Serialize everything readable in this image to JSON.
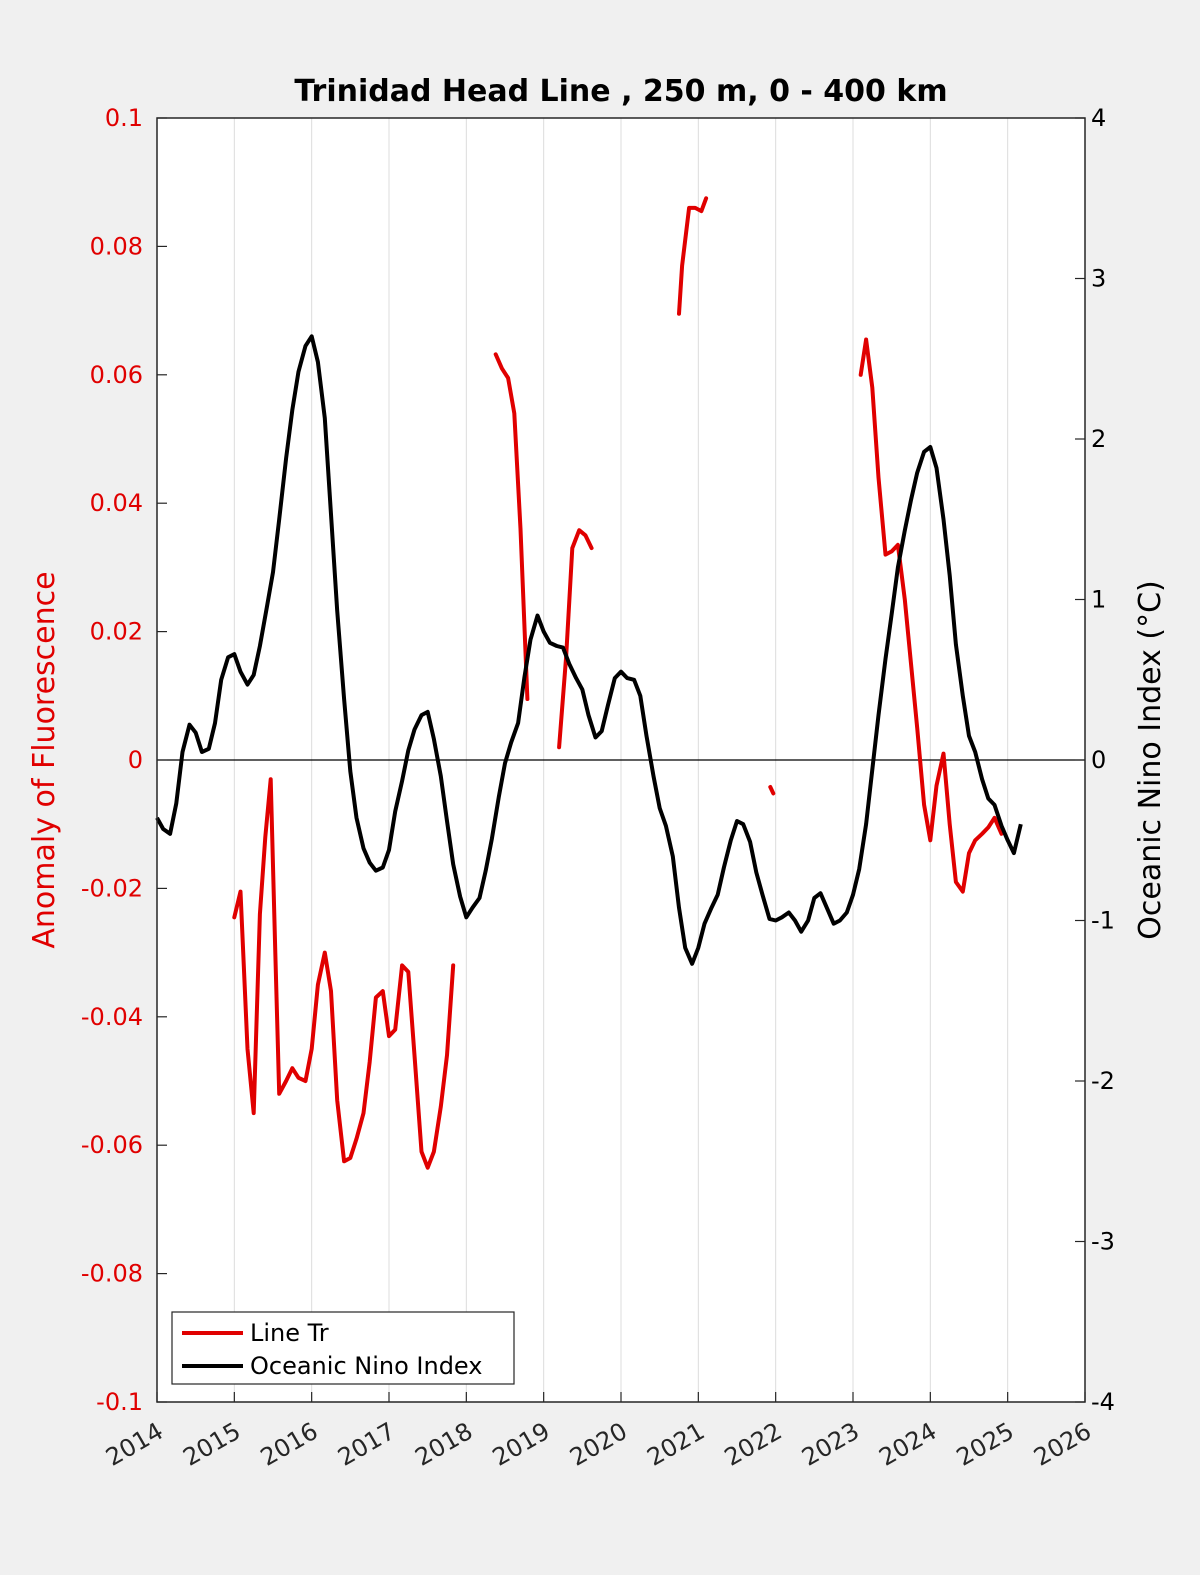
{
  "chart_data": {
    "type": "line",
    "title": "Trinidad Head Line , 250 m, 0 - 400 km",
    "y_left_label": "Anomaly of Fluorescence",
    "y_right_label": "Oceanic Nino Index (°C)",
    "colors": {
      "left_axis": "#e00000",
      "fluorescence": "#e00000",
      "oni": "#000000",
      "grid": "#dcdcdc",
      "zero_line": "#000000"
    },
    "xlim": [
      2014,
      2026
    ],
    "x_ticks": [
      2014,
      2015,
      2016,
      2017,
      2018,
      2019,
      2020,
      2021,
      2022,
      2023,
      2024,
      2025,
      2026
    ],
    "x_tick_labels": [
      "2014",
      "2015",
      "2016",
      "2017",
      "2018",
      "2019",
      "2020",
      "2021",
      "2022",
      "2023",
      "2024",
      "2025",
      "2026"
    ],
    "ylim_left": [
      -0.1,
      0.1
    ],
    "y_left_ticks": [
      0.1,
      0.08,
      0.06,
      0.04,
      0.02,
      0,
      -0.02,
      -0.04,
      -0.06,
      -0.08,
      -0.1
    ],
    "y_left_tick_labels": [
      "0.1",
      "0.08",
      "0.06",
      "0.04",
      "0.02",
      "0",
      "-0.02",
      "-0.04",
      "-0.06",
      "-0.08",
      "-0.1"
    ],
    "ylim_right": [
      -4,
      4
    ],
    "y_right_ticks": [
      4,
      3,
      2,
      1,
      0,
      -1,
      -2,
      -3,
      -4
    ],
    "y_right_tick_labels": [
      "4",
      "3",
      "2",
      "1",
      "0",
      "-1",
      "-2",
      "-3",
      "-4"
    ],
    "grid": "vertical",
    "legend": {
      "placement": "bottom-left",
      "entries": [
        "Line Tr",
        "Oceanic Nino Index"
      ]
    },
    "series": [
      {
        "name": "Line Tr",
        "axis": "left",
        "segments": [
          [
            [
              2015.0,
              -0.0245
            ],
            [
              2015.08,
              -0.0205
            ],
            [
              2015.17,
              -0.045
            ],
            [
              2015.25,
              -0.055
            ],
            [
              2015.33,
              -0.024
            ],
            [
              2015.4,
              -0.012
            ],
            [
              2015.47,
              -0.003
            ],
            [
              2015.53,
              -0.03
            ],
            [
              2015.58,
              -0.052
            ],
            [
              2015.67,
              -0.05
            ],
            [
              2015.75,
              -0.048
            ],
            [
              2015.83,
              -0.0495
            ],
            [
              2015.92,
              -0.05
            ],
            [
              2016.0,
              -0.045
            ],
            [
              2016.08,
              -0.035
            ],
            [
              2016.17,
              -0.03
            ],
            [
              2016.25,
              -0.036
            ],
            [
              2016.33,
              -0.053
            ],
            [
              2016.42,
              -0.0625
            ],
            [
              2016.5,
              -0.062
            ],
            [
              2016.58,
              -0.059
            ],
            [
              2016.67,
              -0.055
            ],
            [
              2016.75,
              -0.047
            ],
            [
              2016.83,
              -0.037
            ],
            [
              2016.92,
              -0.036
            ],
            [
              2017.0,
              -0.043
            ],
            [
              2017.08,
              -0.042
            ],
            [
              2017.17,
              -0.032
            ],
            [
              2017.25,
              -0.033
            ],
            [
              2017.33,
              -0.046
            ],
            [
              2017.42,
              -0.061
            ],
            [
              2017.5,
              -0.0635
            ],
            [
              2017.58,
              -0.061
            ],
            [
              2017.67,
              -0.054
            ],
            [
              2017.75,
              -0.046
            ],
            [
              2017.83,
              -0.032
            ]
          ],
          [
            [
              2018.38,
              0.0632
            ],
            [
              2018.46,
              0.061
            ],
            [
              2018.54,
              0.0595
            ],
            [
              2018.62,
              0.054
            ],
            [
              2018.7,
              0.036
            ],
            [
              2018.79,
              0.0095
            ]
          ],
          [
            [
              2019.2,
              0.002
            ],
            [
              2019.29,
              0.016
            ],
            [
              2019.37,
              0.033
            ],
            [
              2019.46,
              0.0358
            ],
            [
              2019.54,
              0.035
            ],
            [
              2019.62,
              0.033
            ]
          ],
          [
            [
              2020.75,
              0.0695
            ],
            [
              2020.79,
              0.077
            ],
            [
              2020.88,
              0.086
            ],
            [
              2020.96,
              0.086
            ],
            [
              2021.04,
              0.0855
            ],
            [
              2021.1,
              0.0875
            ]
          ],
          [
            [
              2021.93,
              -0.0042
            ],
            [
              2021.97,
              -0.0052
            ]
          ],
          [
            [
              2023.1,
              0.06
            ],
            [
              2023.17,
              0.0655
            ],
            [
              2023.25,
              0.058
            ],
            [
              2023.33,
              0.044
            ],
            [
              2023.42,
              0.032
            ],
            [
              2023.5,
              0.0325
            ],
            [
              2023.58,
              0.0335
            ],
            [
              2023.67,
              0.025
            ],
            [
              2023.75,
              0.015
            ],
            [
              2023.83,
              0.005
            ],
            [
              2023.92,
              -0.007
            ],
            [
              2024.0,
              -0.0125
            ],
            [
              2024.08,
              -0.004
            ],
            [
              2024.17,
              0.001
            ],
            [
              2024.25,
              -0.01
            ],
            [
              2024.33,
              -0.019
            ],
            [
              2024.42,
              -0.0205
            ],
            [
              2024.5,
              -0.0145
            ],
            [
              2024.58,
              -0.0125
            ],
            [
              2024.67,
              -0.0115
            ],
            [
              2024.75,
              -0.0105
            ],
            [
              2024.83,
              -0.009
            ],
            [
              2024.92,
              -0.0115
            ]
          ]
        ]
      },
      {
        "name": "Oceanic Nino Index",
        "axis": "right",
        "x": [
          2014.0,
          2014.08,
          2014.17,
          2014.25,
          2014.33,
          2014.42,
          2014.5,
          2014.58,
          2014.67,
          2014.75,
          2014.83,
          2014.92,
          2015.0,
          2015.08,
          2015.17,
          2015.25,
          2015.33,
          2015.42,
          2015.5,
          2015.58,
          2015.67,
          2015.75,
          2015.83,
          2015.92,
          2016.0,
          2016.08,
          2016.17,
          2016.25,
          2016.33,
          2016.42,
          2016.5,
          2016.58,
          2016.67,
          2016.75,
          2016.83,
          2016.92,
          2017.0,
          2017.08,
          2017.17,
          2017.25,
          2017.33,
          2017.42,
          2017.5,
          2017.58,
          2017.67,
          2017.75,
          2017.83,
          2017.92,
          2018.0,
          2018.08,
          2018.17,
          2018.25,
          2018.33,
          2018.42,
          2018.5,
          2018.58,
          2018.67,
          2018.75,
          2018.83,
          2018.92,
          2019.0,
          2019.08,
          2019.17,
          2019.25,
          2019.33,
          2019.42,
          2019.5,
          2019.58,
          2019.67,
          2019.75,
          2019.83,
          2019.92,
          2020.0,
          2020.08,
          2020.17,
          2020.25,
          2020.33,
          2020.42,
          2020.5,
          2020.58,
          2020.67,
          2020.75,
          2020.83,
          2020.92,
          2021.0,
          2021.08,
          2021.17,
          2021.25,
          2021.33,
          2021.42,
          2021.5,
          2021.58,
          2021.67,
          2021.75,
          2021.83,
          2021.92,
          2022.0,
          2022.08,
          2022.17,
          2022.25,
          2022.33,
          2022.42,
          2022.5,
          2022.58,
          2022.67,
          2022.75,
          2022.83,
          2022.92,
          2023.0,
          2023.08,
          2023.17,
          2023.25,
          2023.33,
          2023.42,
          2023.5,
          2023.58,
          2023.67,
          2023.75,
          2023.83,
          2023.92,
          2024.0,
          2024.08,
          2024.17,
          2024.25,
          2024.33,
          2024.42,
          2024.5,
          2024.58,
          2024.67,
          2024.75,
          2024.83,
          2024.92,
          2025.0,
          2025.08,
          2025.17
        ],
        "values": [
          -0.36,
          -0.43,
          -0.46,
          -0.27,
          0.05,
          0.22,
          0.17,
          0.05,
          0.07,
          0.23,
          0.5,
          0.64,
          0.66,
          0.55,
          0.47,
          0.53,
          0.71,
          0.95,
          1.17,
          1.5,
          1.88,
          2.18,
          2.42,
          2.58,
          2.64,
          2.48,
          2.13,
          1.53,
          0.93,
          0.38,
          -0.07,
          -0.36,
          -0.55,
          -0.64,
          -0.69,
          -0.67,
          -0.56,
          -0.32,
          -0.13,
          0.06,
          0.19,
          0.28,
          0.3,
          0.13,
          -0.1,
          -0.38,
          -0.65,
          -0.85,
          -0.98,
          -0.92,
          -0.86,
          -0.69,
          -0.49,
          -0.23,
          -0.02,
          0.11,
          0.23,
          0.51,
          0.75,
          0.9,
          0.8,
          0.73,
          0.71,
          0.7,
          0.6,
          0.51,
          0.44,
          0.28,
          0.14,
          0.18,
          0.34,
          0.51,
          0.55,
          0.51,
          0.5,
          0.4,
          0.15,
          -0.1,
          -0.3,
          -0.41,
          -0.6,
          -0.92,
          -1.17,
          -1.27,
          -1.17,
          -1.02,
          -0.92,
          -0.84,
          -0.67,
          -0.5,
          -0.38,
          -0.4,
          -0.51,
          -0.7,
          -0.84,
          -0.99,
          -1.0,
          -0.98,
          -0.95,
          -1.0,
          -1.07,
          -1.0,
          -0.86,
          -0.83,
          -0.93,
          -1.02,
          -1.0,
          -0.95,
          -0.84,
          -0.68,
          -0.4,
          -0.06,
          0.28,
          0.63,
          0.91,
          1.2,
          1.43,
          1.62,
          1.79,
          1.92,
          1.95,
          1.82,
          1.5,
          1.15,
          0.72,
          0.4,
          0.15,
          0.05,
          -0.12,
          -0.24,
          -0.28,
          -0.41,
          -0.5,
          -0.58,
          -0.4
        ]
      }
    ]
  }
}
